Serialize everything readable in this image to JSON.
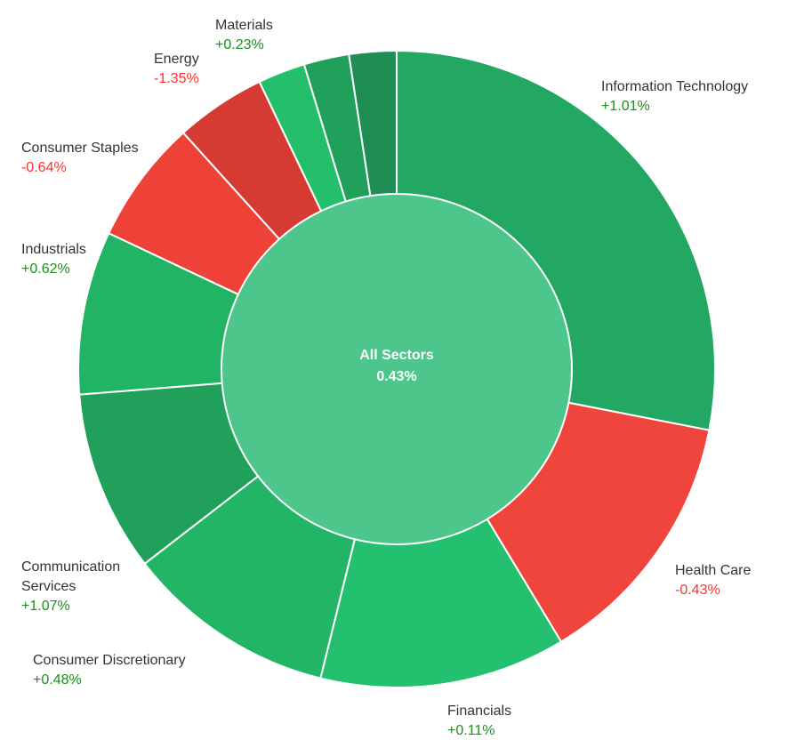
{
  "chart_data": {
    "type": "donut",
    "categories": [
      "Information Technology",
      "Health Care",
      "Financials",
      "Consumer Discretionary",
      "Communication Services",
      "Industrials",
      "Consumer Staples",
      "Energy",
      "Materials",
      null,
      null
    ],
    "weights": [
      28.1,
      13.3,
      12.5,
      10.7,
      9.2,
      8.3,
      6.3,
      4.6,
      2.4,
      2.3,
      2.4
    ],
    "values": [
      1.01,
      -0.43,
      0.11,
      0.48,
      1.07,
      0.62,
      -0.64,
      -1.35,
      0.23,
      null,
      null
    ],
    "value_labels": [
      "+1.01%",
      "-0.43%",
      "+0.11%",
      "+0.48%",
      "+1.07%",
      "+0.62%",
      "-0.64%",
      "-1.35%",
      "+0.23%",
      null,
      null
    ],
    "colors": [
      "#22a862",
      "#f0453c",
      "#22c06f",
      "#23b566",
      "#21a05c",
      "#22b465",
      "#ee4239",
      "#d63b33",
      "#25bf6c",
      "#21a05c",
      "#1e8e54"
    ],
    "center": {
      "label": "All Sectors",
      "value": 0.43,
      "value_label": "0.43%",
      "color": "#4cc68b"
    }
  }
}
